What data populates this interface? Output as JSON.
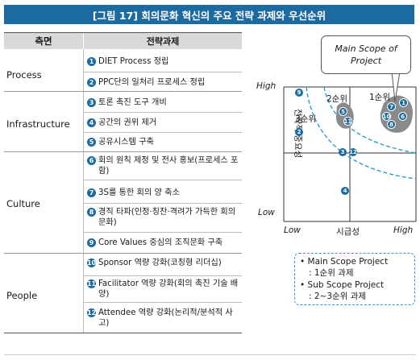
{
  "title": "[그림 17] 회의문화 혁신의 주요 전략 과제와 우선순위",
  "table": {
    "header_category": "측면",
    "header_task": "전략과제",
    "rows": [
      {
        "category": "Process",
        "items": [
          {
            "n": "1",
            "text": "DIET Process 정립"
          },
          {
            "n": "2",
            "text": "PPC단의 일처리 프로세스 정립"
          }
        ]
      },
      {
        "category": "Infrastructure",
        "items": [
          {
            "n": "3",
            "text": "토론 촉진 도구 개비"
          },
          {
            "n": "4",
            "text": "공간의 권위 제거"
          },
          {
            "n": "5",
            "text": "공유시스템 구축"
          }
        ]
      },
      {
        "category": "Culture",
        "items": [
          {
            "n": "6",
            "text": "회의 원칙 제정 및 전사 홍보(프로세스 포함)"
          },
          {
            "n": "7",
            "text": "3S를 통한 회의 양 축소"
          },
          {
            "n": "8",
            "text": "경직 타파(인정·칭찬·격려가 가득한 회의문화)"
          },
          {
            "n": "9",
            "text": "Core Values 중심의 조직문화 구축"
          }
        ]
      },
      {
        "category": "People",
        "items": [
          {
            "n": "10",
            "text": "Sponsor 역량 강화(코칭형 리더십)"
          },
          {
            "n": "11",
            "text": "Facilitator 역량 강화(회의 촉진 기술 배양)"
          },
          {
            "n": "12",
            "text": "Attendee 역량 강화(논리적/분석적 사고)"
          }
        ]
      }
    ]
  },
  "matrix": {
    "callout_line1": "Main Scope of",
    "callout_line2": "Project",
    "y_high": "High",
    "y_low": "Low",
    "y_label": "전략적 중요성",
    "x_low": "Low",
    "x_high": "High",
    "x_label": "시급성",
    "rank1": "1순위",
    "rank2": "2순위",
    "rank3": "3순위",
    "dots": [
      "9",
      "2",
      "5",
      "11",
      "7",
      "1",
      "10",
      "6",
      "8",
      "3",
      "12",
      "4"
    ]
  },
  "legend": {
    "line1": "• Main Scope Project",
    "line2": ": 1순위 과제",
    "line3": "• Sub Scope Project",
    "line4": ": 2~3순위 과제"
  },
  "colors": {
    "accent": "#1b6aa0",
    "header_gray": "#d9d9d9",
    "curve": "#2aa0c8",
    "cluster": "#8a8a8a"
  }
}
